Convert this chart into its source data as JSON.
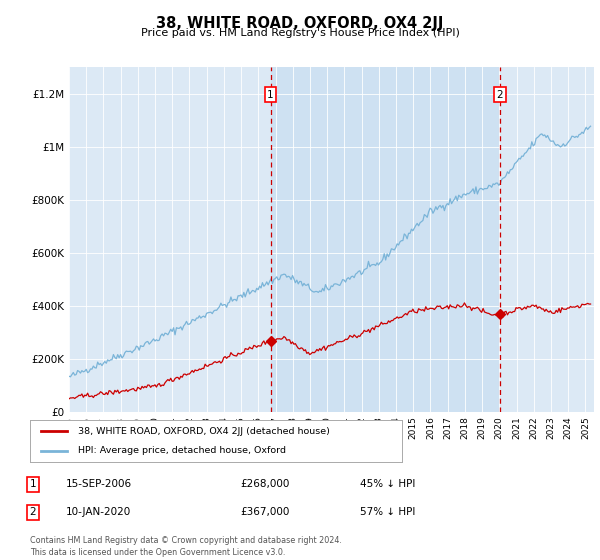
{
  "title": "38, WHITE ROAD, OXFORD, OX4 2JJ",
  "subtitle": "Price paid vs. HM Land Registry's House Price Index (HPI)",
  "background_color": "#dce9f5",
  "ylim": [
    0,
    1300000
  ],
  "yticks": [
    0,
    200000,
    400000,
    600000,
    800000,
    1000000,
    1200000
  ],
  "ytick_labels": [
    "£0",
    "£200K",
    "£400K",
    "£600K",
    "£800K",
    "£1M",
    "£1.2M"
  ],
  "hpi_color": "#7ab4d8",
  "hpi_fill_color": "#c5ddf0",
  "sale_color": "#cc0000",
  "vline_color": "#cc0000",
  "marker1_x": 2006.71,
  "marker2_x": 2020.03,
  "marker1_label": "15-SEP-2006",
  "marker2_label": "10-JAN-2020",
  "marker1_price": "£268,000",
  "marker2_price": "£367,000",
  "marker1_pct": "45% ↓ HPI",
  "marker2_pct": "57% ↓ HPI",
  "marker1_value": 268000,
  "marker2_value": 367000,
  "legend_label_sale": "38, WHITE ROAD, OXFORD, OX4 2JJ (detached house)",
  "legend_label_hpi": "HPI: Average price, detached house, Oxford",
  "footer": "Contains HM Land Registry data © Crown copyright and database right 2024.\nThis data is licensed under the Open Government Licence v3.0.",
  "xmin": 1995,
  "xmax": 2025.5
}
